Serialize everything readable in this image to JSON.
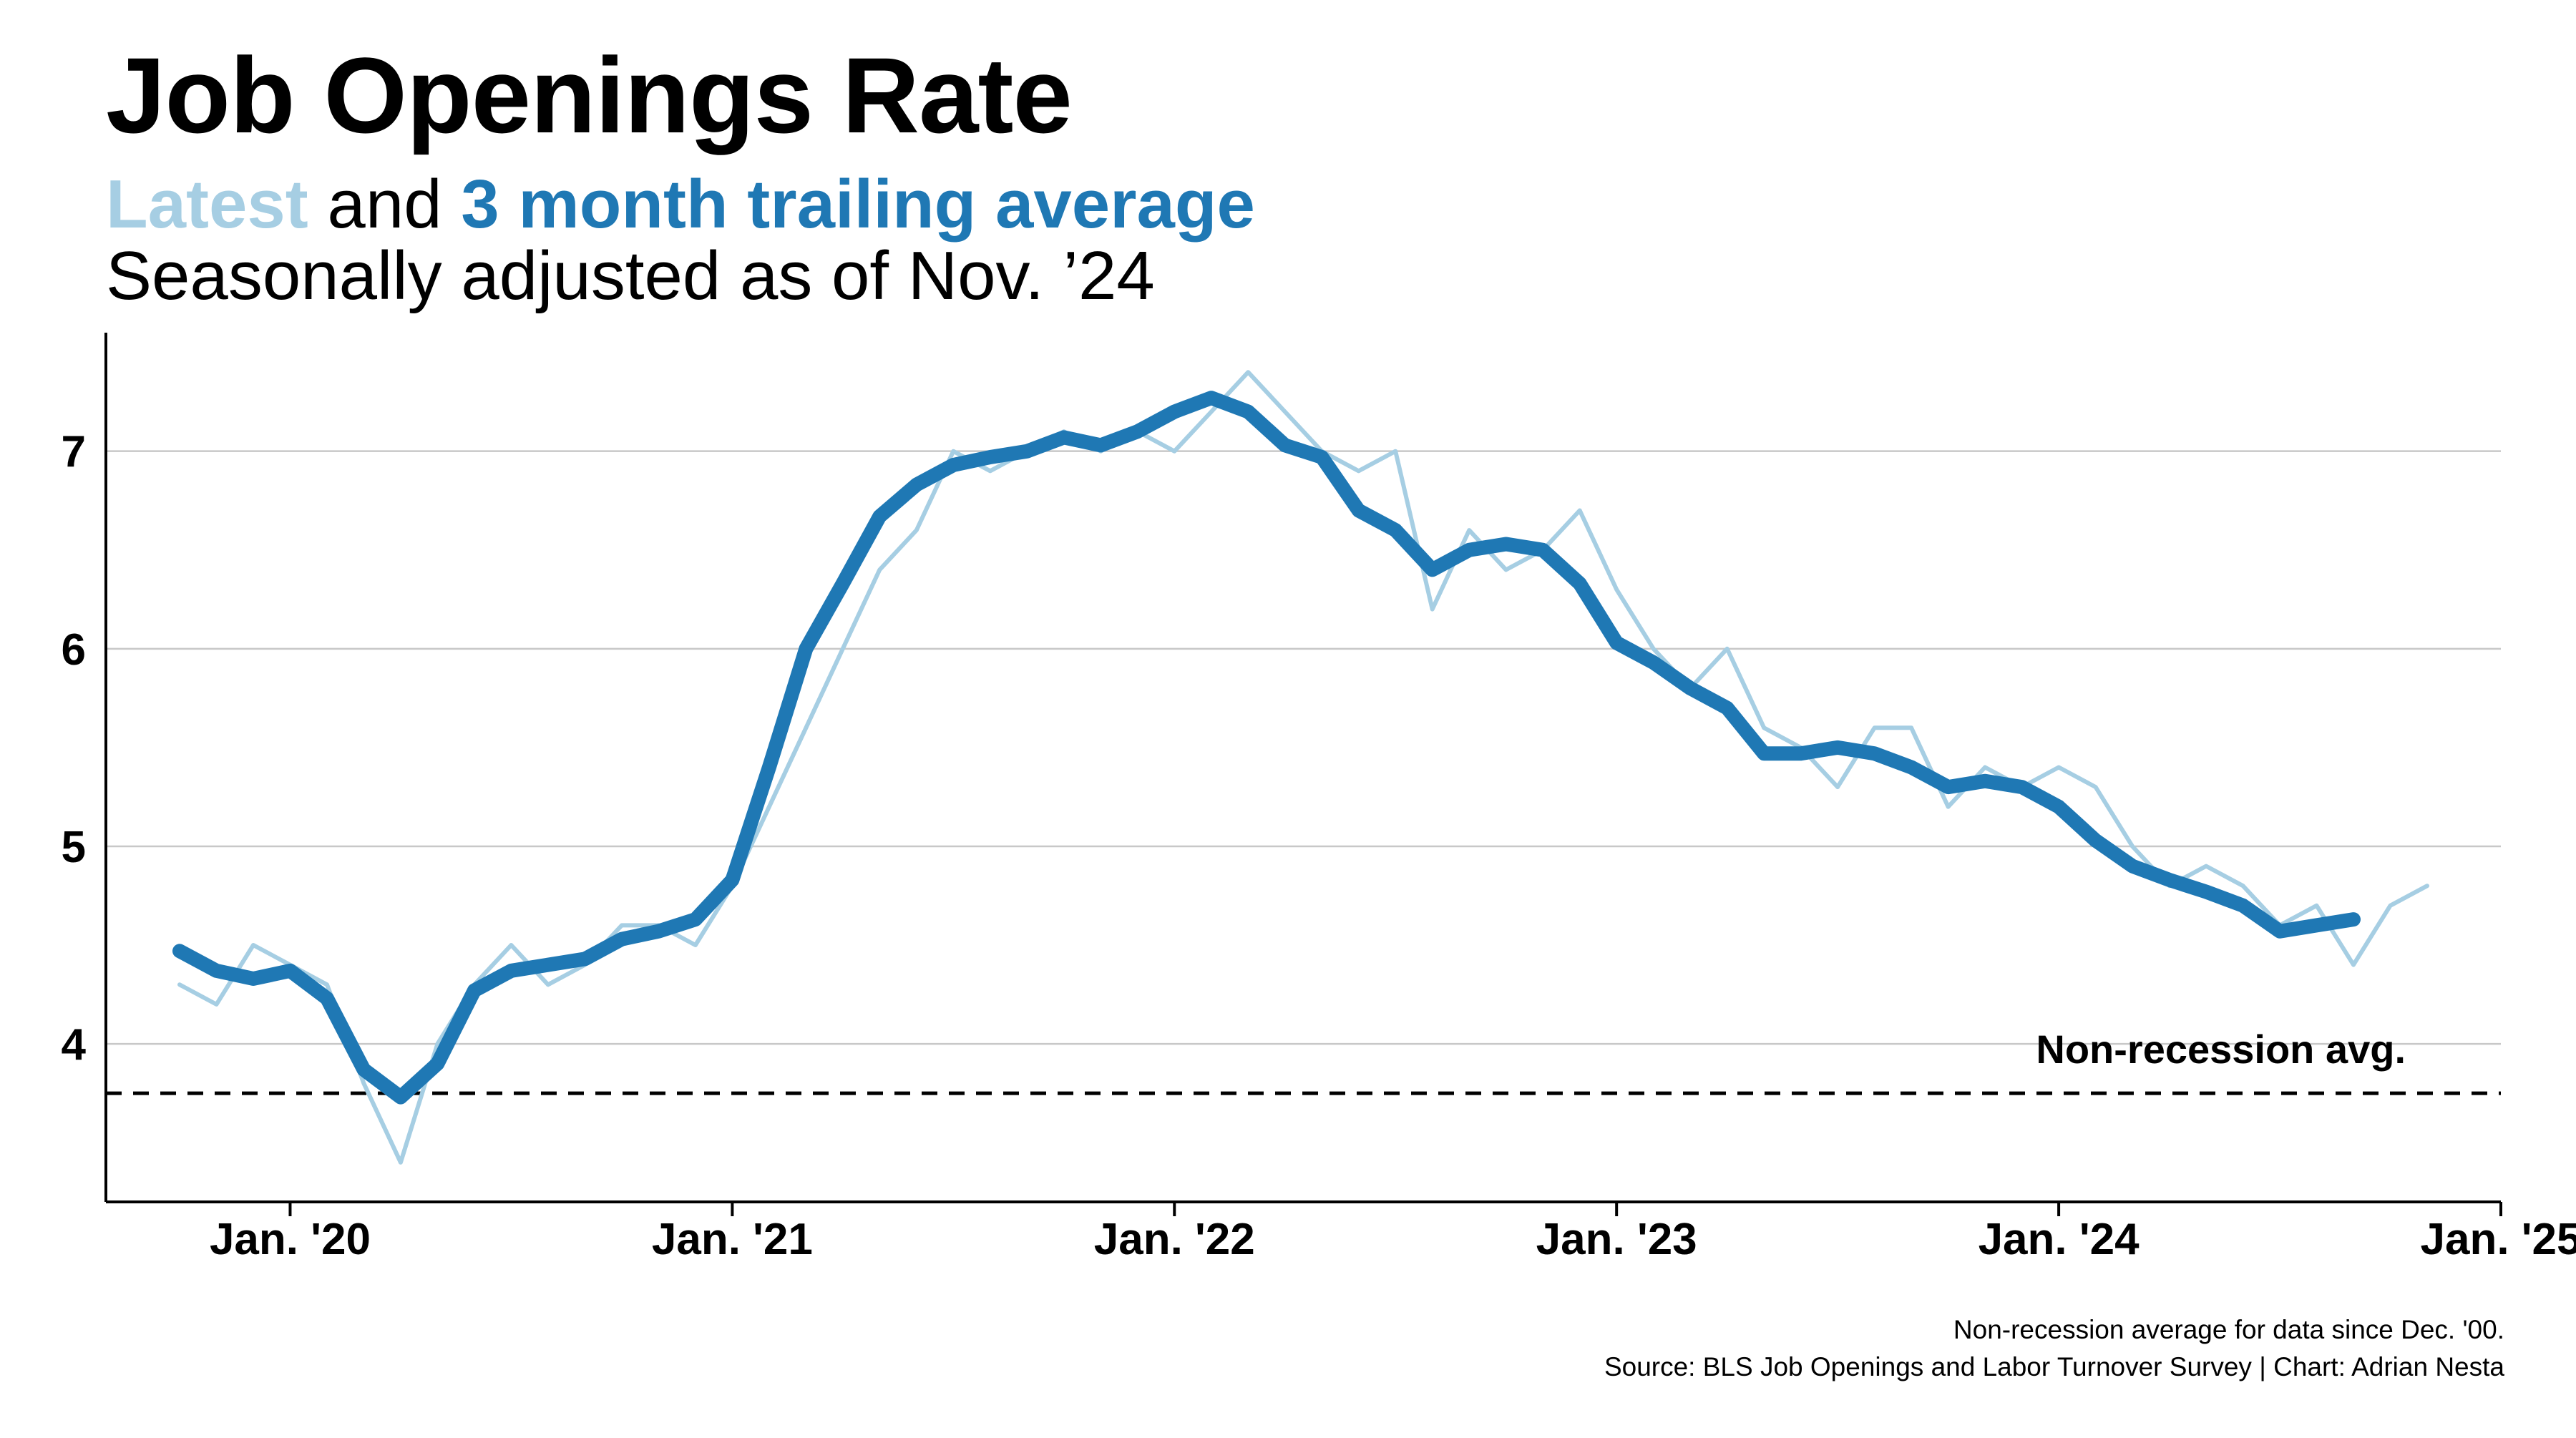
{
  "header": {
    "title": "Job Openings Rate",
    "subtitle_latest": "Latest",
    "subtitle_and": " and ",
    "subtitle_avg": "3 month trailing average",
    "subtitle_line2": "Seasonally adjusted as of Nov. ’24"
  },
  "footnotes": {
    "line1": "Non-recession average for data since Dec. '00.",
    "line2": "Source: BLS Job Openings and Labor Turnover Survey | Chart: Adrian Nesta"
  },
  "colors": {
    "latest": "#a6cee3",
    "average": "#1f78b4",
    "grid": "#c8c8c8",
    "axis": "#000000"
  },
  "chart_data": {
    "type": "line",
    "x_start": "2019-10",
    "x_end": "2024-11",
    "x_axis_range": [
      "2019-08",
      "2025-01"
    ],
    "xticks": [
      {
        "label": "Jan. '20",
        "date": "2020-01"
      },
      {
        "label": "Jan. '21",
        "date": "2021-01"
      },
      {
        "label": "Jan. '22",
        "date": "2022-01"
      },
      {
        "label": "Jan. '23",
        "date": "2023-01"
      },
      {
        "label": "Jan. '24",
        "date": "2024-01"
      },
      {
        "label": "Jan. '25",
        "date": "2025-01"
      }
    ],
    "yticks": [
      4,
      5,
      6,
      7
    ],
    "ylim": [
      3.2,
      7.6
    ],
    "grid": "horizontal",
    "reference_line": {
      "label": "Non-recession avg.",
      "value": 3.75,
      "style": "dashed"
    },
    "series": [
      {
        "name": "Latest",
        "values": [
          4.3,
          4.2,
          4.5,
          4.4,
          4.3,
          3.8,
          3.4,
          4.0,
          4.3,
          4.5,
          4.3,
          4.4,
          4.6,
          4.6,
          4.5,
          4.8,
          5.2,
          5.6,
          6.0,
          6.4,
          6.6,
          7.0,
          6.9,
          7.0,
          7.1,
          7.0,
          7.1,
          7.0,
          7.2,
          7.4,
          7.2,
          7.0,
          6.9,
          7.0,
          6.2,
          6.6,
          6.4,
          6.5,
          6.7,
          6.3,
          6.0,
          5.8,
          6.0,
          5.6,
          5.5,
          5.3,
          5.6,
          5.6,
          5.2,
          5.4,
          5.3,
          5.4,
          5.3,
          5.0,
          4.8,
          4.9,
          4.8,
          4.6,
          4.7,
          4.4,
          4.7,
          4.8
        ]
      },
      {
        "name": "3 month trailing average",
        "values": [
          4.47,
          4.37,
          4.33,
          4.37,
          4.23,
          3.87,
          3.73,
          3.9,
          4.27,
          4.37,
          4.4,
          4.43,
          4.53,
          4.57,
          4.63,
          4.83,
          5.4,
          6.0,
          6.33,
          6.67,
          6.83,
          6.93,
          6.97,
          7.0,
          7.07,
          7.03,
          7.1,
          7.2,
          7.27,
          7.2,
          7.03,
          6.97,
          6.7,
          6.6,
          6.4,
          6.5,
          6.53,
          6.5,
          6.33,
          6.03,
          5.93,
          5.8,
          5.7,
          5.47,
          5.47,
          5.5,
          5.47,
          5.4,
          5.3,
          5.33,
          5.3,
          5.2,
          5.03,
          4.9,
          4.83,
          4.77,
          4.7,
          4.57,
          4.6,
          4.63
        ]
      }
    ]
  }
}
